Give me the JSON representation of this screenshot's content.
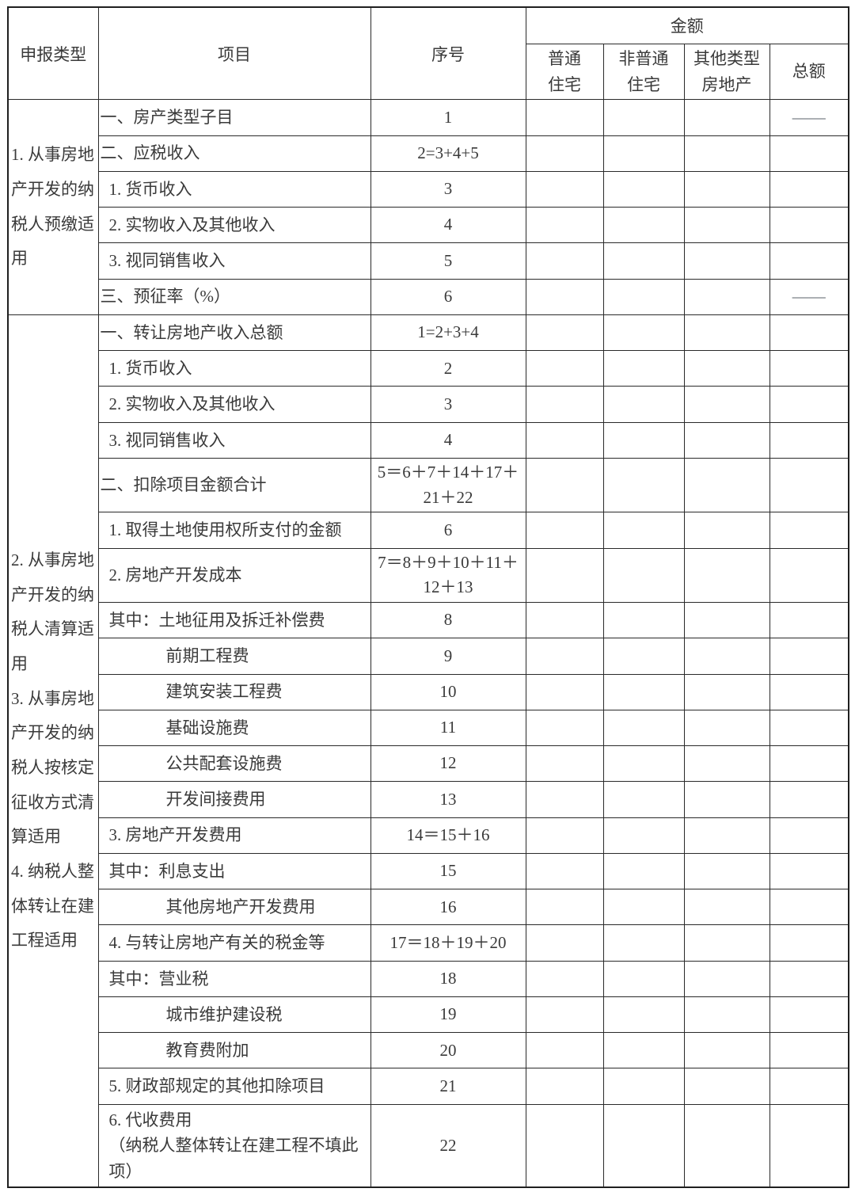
{
  "table": {
    "header": {
      "declaration_type": "申报类型",
      "item": "项目",
      "seq": "序号",
      "amount": "金额",
      "amount_cols": {
        "ordinary": "普通\n住宅",
        "non_ordinary": "非普通\n住宅",
        "other": "其他类型\n房地产",
        "total": "总额"
      }
    },
    "sections": [
      {
        "label": "1. 从事房地产开发的纳税人预缴适用",
        "rows": [
          {
            "item": "一、房产类型子目",
            "seq": "1",
            "total": "——"
          },
          {
            "item": "二、应税收入",
            "seq": "2=3+4+5"
          },
          {
            "item": "1. 货币收入",
            "seq": "3"
          },
          {
            "item": "2. 实物收入及其他收入",
            "seq": "4"
          },
          {
            "item": "3. 视同销售收入",
            "seq": "5"
          },
          {
            "item": "三、预征率（%）",
            "seq": "6",
            "total": "——"
          }
        ]
      },
      {
        "label": "2. 从事房地产开发的纳税人清算适用\n3. 从事房地产开发的纳税人按核定征收方式清算适用\n4. 纳税人整体转让在建工程适用",
        "rows": [
          {
            "item": "一、转让房地产收入总额",
            "seq": "1=2+3+4"
          },
          {
            "item": "1. 货币收入",
            "seq": "2"
          },
          {
            "item": "2. 实物收入及其他收入",
            "seq": "3"
          },
          {
            "item": "3. 视同销售收入",
            "seq": "4"
          },
          {
            "item": "二、扣除项目金额合计",
            "seq": "5＝6＋7＋14＋17＋21＋22"
          },
          {
            "item": "1. 取得土地使用权所支付的金额",
            "seq": "6"
          },
          {
            "item": "2. 房地产开发成本",
            "seq": "7＝8＋9＋10＋11＋12＋13"
          },
          {
            "item": "其中：土地征用及拆迁补偿费",
            "seq": "8"
          },
          {
            "item": "前期工程费",
            "seq": "9"
          },
          {
            "item": "建筑安装工程费",
            "seq": "10"
          },
          {
            "item": "基础设施费",
            "seq": "11"
          },
          {
            "item": "公共配套设施费",
            "seq": "12"
          },
          {
            "item": "开发间接费用",
            "seq": "13"
          },
          {
            "item": "3. 房地产开发费用",
            "seq": "14＝15＋16"
          },
          {
            "item": "其中：利息支出",
            "seq": "15"
          },
          {
            "item": "其他房地产开发费用",
            "seq": "16"
          },
          {
            "item": "4. 与转让房地产有关的税金等",
            "seq": "17＝18＋19＋20"
          },
          {
            "item": "其中：营业税",
            "seq": "18"
          },
          {
            "item": "城市维护建设税",
            "seq": "19"
          },
          {
            "item": "教育费附加",
            "seq": "20"
          },
          {
            "item": "5. 财政部规定的其他扣除项目",
            "seq": "21"
          },
          {
            "item": "6. 代收费用\n（纳税人整体转让在建工程不填此项）",
            "seq": "22"
          }
        ]
      }
    ]
  }
}
